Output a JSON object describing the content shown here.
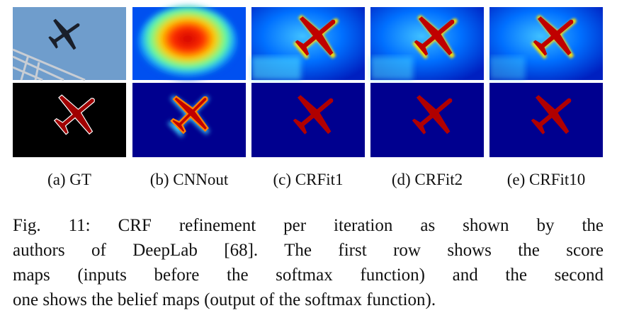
{
  "figure": {
    "panels": [
      "(a) GT",
      "(b) CNNout",
      "(c) CRFit1",
      "(d) CRFit2",
      "(e) CRFit10"
    ],
    "caption_lines": [
      "Fig. 11: CRF refinement per iteration as shown by the",
      "authors of DeepLab [68]. The first row shows the score",
      "maps (inputs before the softmax function) and the second",
      "one shows the belief maps (output of the softmax function)."
    ]
  }
}
